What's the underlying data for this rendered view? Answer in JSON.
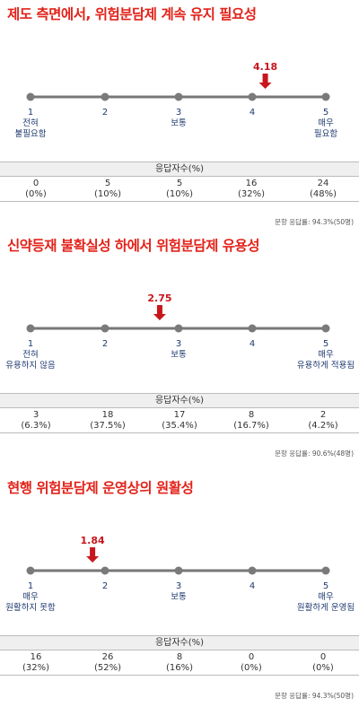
{
  "chart_data": [
    {
      "type": "table",
      "title": "제도 측면에서, 위험분담제 계속 유지 필요성",
      "scale_points": [
        "1",
        "2",
        "3",
        "4",
        "5"
      ],
      "scale_labels": [
        [
          "전혀",
          "불필요함"
        ],
        [],
        [
          "보통"
        ],
        [],
        [
          "매우",
          "필요함"
        ]
      ],
      "mean_value": 4.18,
      "mean_label": "4.18",
      "table_header": "응답자수(%)",
      "counts": [
        "0",
        "5",
        "5",
        "16",
        "24"
      ],
      "percents": [
        "(0%)",
        "(10%)",
        "(10%)",
        "(32%)",
        "(48%)"
      ],
      "note": "문항 응답률: 94.3%(50명)"
    },
    {
      "type": "table",
      "title": "신약등재 불확실성 하에서 위험분담제 유용성",
      "scale_points": [
        "1",
        "2",
        "3",
        "4",
        "5"
      ],
      "scale_labels": [
        [
          "전혀",
          "유용하지 않음"
        ],
        [],
        [
          "보통"
        ],
        [],
        [
          "매우",
          "유용하게 적용됨"
        ]
      ],
      "mean_value": 2.75,
      "mean_label": "2.75",
      "table_header": "응답자수(%)",
      "counts": [
        "3",
        "18",
        "17",
        "8",
        "2"
      ],
      "percents": [
        "(6.3%)",
        "(37.5%)",
        "(35.4%)",
        "(16.7%)",
        "(4.2%)"
      ],
      "note": "문항 응답률: 90.6%(48명)"
    },
    {
      "type": "table",
      "title": "현행 위험분담제 운영상의 원활성",
      "scale_points": [
        "1",
        "2",
        "3",
        "4",
        "5"
      ],
      "scale_labels": [
        [
          "매우",
          "원활하지 못함"
        ],
        [],
        [
          "보통"
        ],
        [],
        [
          "매우",
          "원활하게 운영됨"
        ]
      ],
      "mean_value": 1.84,
      "mean_label": "1.84",
      "table_header": "응답자수(%)",
      "counts": [
        "16",
        "26",
        "8",
        "0",
        "0"
      ],
      "percents": [
        "(32%)",
        "(52%)",
        "(16%)",
        "(0%)",
        "(0%)"
      ],
      "note": "문항 응답률: 94.3%(50명)"
    }
  ],
  "colors": {
    "title": "#e2231a",
    "arrow": "#c8161d",
    "scale_line": "#777777",
    "dot": "#7a7a7a",
    "label": "#1f3a70"
  }
}
